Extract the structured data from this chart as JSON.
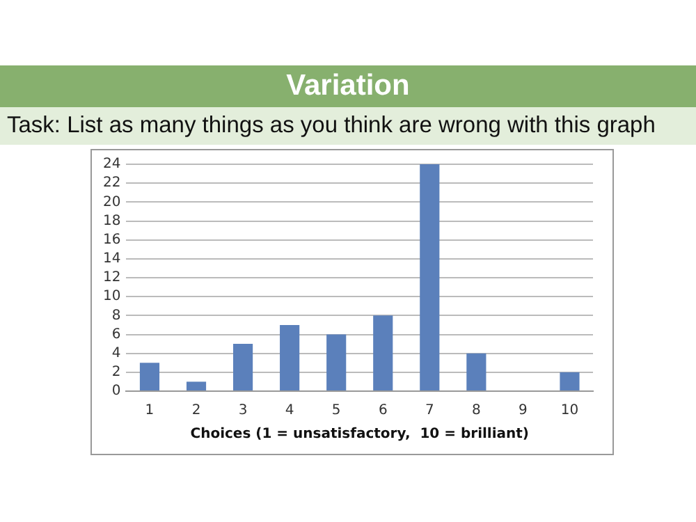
{
  "chart_data": {
    "type": "bar",
    "title": "Variation",
    "subtitle": "Task: List as many things as you think are wrong with this graph",
    "xlabel": "Choices (1 = unsatisfactory,  10 = brilliant)",
    "categories": [
      "1",
      "2",
      "3",
      "4",
      "5",
      "6",
      "7",
      "8",
      "9",
      "10"
    ],
    "values": [
      3,
      1,
      5,
      7,
      6,
      8,
      24,
      4,
      0,
      2
    ],
    "color": "#5b80bb",
    "ylim": [
      0,
      24
    ],
    "yticks": [
      0,
      2,
      4,
      6,
      8,
      10,
      12,
      14,
      16,
      18,
      20,
      22,
      24
    ],
    "grid": "y",
    "legend": false
  }
}
